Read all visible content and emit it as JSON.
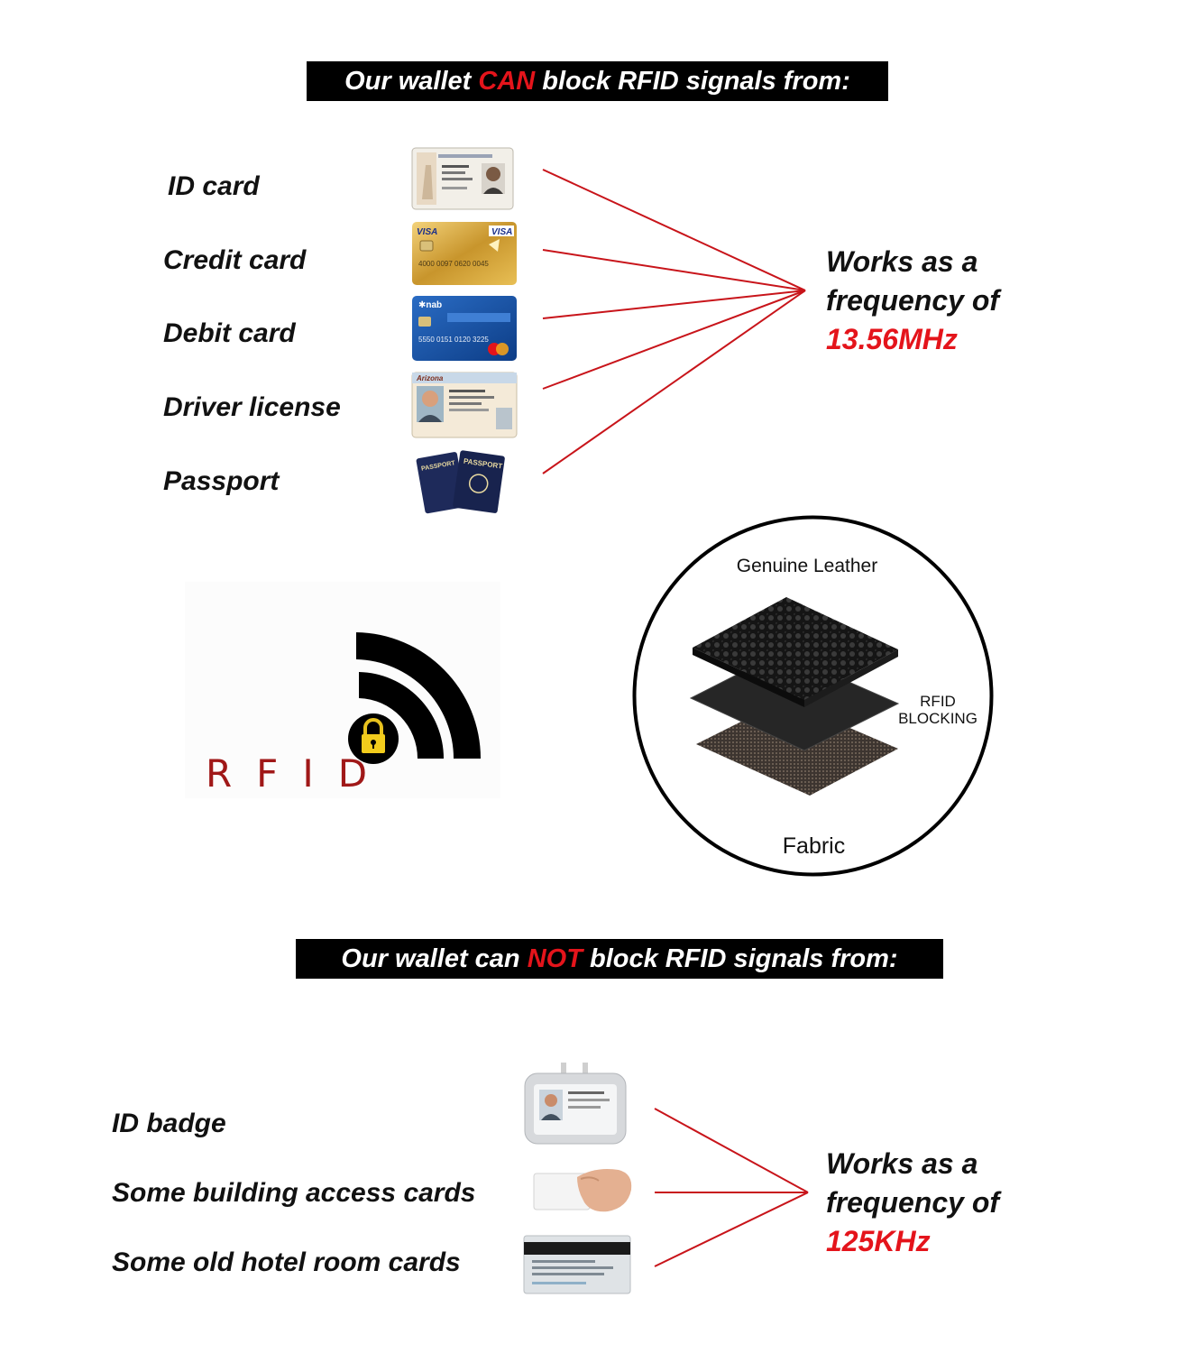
{
  "top_banner": {
    "prefix": "Our wallet ",
    "highlight": "CAN",
    "suffix": " block RFID signals from:"
  },
  "blocked_items": [
    {
      "label": "ID card",
      "icon": "id-card-icon"
    },
    {
      "label": "Credit card",
      "icon": "credit-card-icon",
      "badge": "VISA"
    },
    {
      "label": "Debit card",
      "icon": "debit-card-icon",
      "badge": "nab"
    },
    {
      "label": "Driver license",
      "icon": "driver-license-icon"
    },
    {
      "label": "Passport",
      "icon": "passport-icon",
      "badge": "PASSPORT"
    }
  ],
  "top_frequency": {
    "line1": "Works as a",
    "line2": "frequency of",
    "value": "13.56MHz"
  },
  "rfid_logo": {
    "text": "RFID",
    "icon": "lock-icon"
  },
  "layers": {
    "top": "Genuine Leather",
    "middle_line1": "RFID",
    "middle_line2": "BLOCKING",
    "bottom": "Fabric"
  },
  "bottom_banner": {
    "prefix": "Our wallet can ",
    "highlight": "NOT",
    "suffix": " block RFID signals from:"
  },
  "unblocked_items": [
    {
      "label": "ID badge",
      "icon": "id-badge-icon"
    },
    {
      "label": "Some building access cards",
      "icon": "access-card-icon"
    },
    {
      "label": "Some old hotel room cards",
      "icon": "hotel-card-icon"
    }
  ],
  "bottom_frequency": {
    "line1": "Works as a",
    "line2": "frequency of",
    "value": "125KHz"
  },
  "colors": {
    "accent_red": "#e4141b",
    "line_red": "#c8141a",
    "banner_bg": "#000000",
    "rfid_red": "#a01818"
  }
}
